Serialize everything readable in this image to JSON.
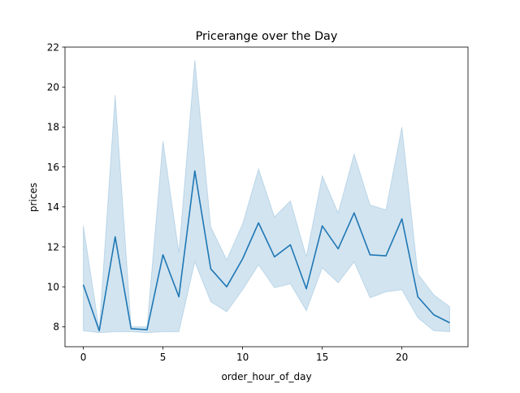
{
  "chart_data": {
    "type": "line",
    "title": "Pricerange over the Day",
    "xlabel": "order_hour_of_day",
    "ylabel": "prices",
    "xlim": [
      -1.15,
      24.15
    ],
    "ylim": [
      7,
      22
    ],
    "x_ticks": [
      0,
      5,
      10,
      15,
      20
    ],
    "y_ticks": [
      8,
      10,
      12,
      14,
      16,
      18,
      20,
      22
    ],
    "grid": false,
    "legend": "none",
    "line_color": "#1f77b4",
    "band_color": "#1f77b4",
    "series": [
      {
        "x": [
          0,
          1,
          2,
          3,
          4,
          5,
          6,
          7,
          8,
          9,
          10,
          11,
          12,
          13,
          14,
          15,
          16,
          17,
          18,
          19,
          20,
          21,
          22,
          23
        ],
        "values": [
          10.1,
          7.8,
          12.5,
          7.9,
          7.85,
          11.6,
          9.5,
          15.8,
          10.9,
          10.0,
          11.4,
          13.2,
          11.5,
          12.1,
          9.9,
          13.05,
          11.9,
          13.7,
          11.6,
          11.55,
          13.4,
          9.5,
          8.6,
          8.2
        ],
        "ci_lower": [
          7.8,
          7.7,
          7.75,
          7.75,
          7.7,
          7.75,
          7.75,
          11.25,
          9.25,
          8.75,
          9.85,
          11.1,
          9.95,
          10.15,
          8.8,
          10.95,
          10.2,
          11.25,
          9.45,
          9.75,
          9.85,
          8.45,
          7.8,
          7.75
        ],
        "ci_upper": [
          13.05,
          7.85,
          19.6,
          8.0,
          8.0,
          17.3,
          11.7,
          21.35,
          13.0,
          11.35,
          13.15,
          15.9,
          13.5,
          14.3,
          11.5,
          15.55,
          13.7,
          16.65,
          14.1,
          13.85,
          18.0,
          10.65,
          9.6,
          9.0
        ]
      }
    ]
  }
}
